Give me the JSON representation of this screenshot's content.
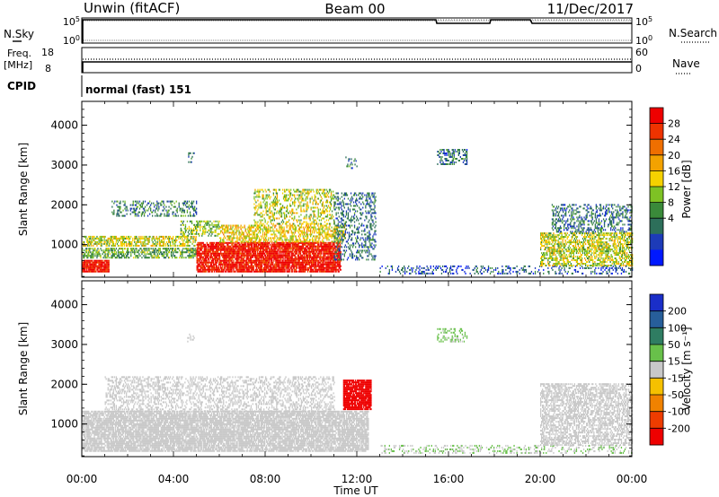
{
  "header": {
    "station": "Unwin (fitACF)",
    "beam": "Beam 00",
    "date": "11/Dec/2017"
  },
  "top_panels": {
    "nsky_label": "N.Sky",
    "nsearch_label": "N.Search",
    "freq_label_1": "Freq.",
    "freq_label_2": "[MHz]",
    "nave_label": "Nave",
    "cpid_label": "CPID",
    "cpid_value": "normal (fast) 151",
    "noise_left_ticks": [
      "10^5",
      "10^0"
    ],
    "noise_right_ticks": [
      "10^5",
      "10^0"
    ],
    "freq_ticks": [
      "18",
      "8"
    ],
    "nave_ticks": [
      "60",
      "0"
    ]
  },
  "colorbars": {
    "power": {
      "label": "Power [dB]",
      "ticks": [
        "28",
        "24",
        "20",
        "16",
        "12",
        "8",
        "4"
      ],
      "colors": [
        "#0018ff",
        "#1d3bb8",
        "#2d6f5a",
        "#3a8a3a",
        "#7ec224",
        "#f5d100",
        "#f3a200",
        "#ef6f00",
        "#ee3300",
        "#ee0000"
      ]
    },
    "velocity": {
      "label": "Velocity [m s⁻¹]",
      "ticks": [
        "200",
        "100",
        "50",
        "15",
        "-15",
        "-50",
        "-100",
        "-200"
      ],
      "colors": [
        "#1a2ec8",
        "#275e9a",
        "#2f7d62",
        "#68c04a",
        "#c8c8c8",
        "#f5c000",
        "#f08200",
        "#ee3c00",
        "#ee0000"
      ]
    }
  },
  "chart_data": [
    {
      "type": "heatmap",
      "title": "Power",
      "xlabel": "Time UT",
      "ylabel": "Slant Range [km]",
      "x_ticks": [
        "00:00",
        "04:00",
        "08:00",
        "12:00",
        "16:00",
        "20:00",
        "00:00"
      ],
      "y_ticks": [
        1000,
        2000,
        3000,
        4000
      ],
      "ylim": [
        180,
        4600
      ],
      "xlim_hours": [
        0,
        24
      ],
      "colorbar_range": [
        0,
        32
      ],
      "regions": [
        {
          "t": [
            0.0,
            1.2
          ],
          "r": [
            300,
            600
          ],
          "v": 30,
          "d": 0.9
        },
        {
          "t": [
            0.0,
            5.0
          ],
          "r": [
            650,
            900
          ],
          "v": 12,
          "d": 0.55
        },
        {
          "t": [
            0.0,
            5.0
          ],
          "r": [
            950,
            1200
          ],
          "v": 16,
          "d": 0.6
        },
        {
          "t": [
            1.3,
            5.0
          ],
          "r": [
            1700,
            2100
          ],
          "v": 9,
          "d": 0.3
        },
        {
          "t": [
            4.3,
            6.0
          ],
          "r": [
            1200,
            1600
          ],
          "v": 14,
          "d": 0.4
        },
        {
          "t": [
            5.0,
            11.3
          ],
          "r": [
            300,
            1050
          ],
          "v": 30,
          "d": 0.85
        },
        {
          "t": [
            6.0,
            11.5
          ],
          "r": [
            1050,
            1500
          ],
          "v": 18,
          "d": 0.5
        },
        {
          "t": [
            7.5,
            11.0
          ],
          "r": [
            1500,
            2400
          ],
          "v": 16,
          "d": 0.35
        },
        {
          "t": [
            11.0,
            12.8
          ],
          "r": [
            600,
            2300
          ],
          "v": 8,
          "d": 0.3
        },
        {
          "t": [
            4.6,
            4.9
          ],
          "r": [
            3050,
            3300
          ],
          "v": 8,
          "d": 0.2
        },
        {
          "t": [
            11.5,
            12.0
          ],
          "r": [
            2900,
            3200
          ],
          "v": 8,
          "d": 0.2
        },
        {
          "t": [
            15.5,
            16.8
          ],
          "r": [
            3000,
            3400
          ],
          "v": 8,
          "d": 0.35
        },
        {
          "t": [
            13.0,
            24.0
          ],
          "r": [
            250,
            450
          ],
          "v": 6,
          "d": 0.25
        },
        {
          "t": [
            20.0,
            24.0
          ],
          "r": [
            450,
            1300
          ],
          "v": 16,
          "d": 0.55
        },
        {
          "t": [
            20.5,
            24.0
          ],
          "r": [
            1300,
            2000
          ],
          "v": 8,
          "d": 0.35
        }
      ]
    },
    {
      "type": "heatmap",
      "title": "Velocity",
      "xlabel": "Time UT",
      "ylabel": "Slant Range [km]",
      "x_ticks": [
        "00:00",
        "04:00",
        "08:00",
        "12:00",
        "16:00",
        "20:00",
        "00:00"
      ],
      "y_ticks": [
        1000,
        2000,
        3000,
        4000
      ],
      "ylim": [
        180,
        4600
      ],
      "xlim_hours": [
        0,
        24
      ],
      "colorbar_range": [
        -200,
        200
      ],
      "regions": [
        {
          "t": [
            0.0,
            12.5
          ],
          "r": [
            300,
            1300
          ],
          "v": 0,
          "d": 0.8
        },
        {
          "t": [
            1.0,
            11.0
          ],
          "r": [
            1300,
            2200
          ],
          "v": 0,
          "d": 0.35
        },
        {
          "t": [
            11.4,
            12.6
          ],
          "r": [
            1350,
            2100
          ],
          "v": -250,
          "d": 0.9
        },
        {
          "t": [
            4.6,
            4.9
          ],
          "r": [
            3050,
            3300
          ],
          "v": 0,
          "d": 0.2
        },
        {
          "t": [
            15.5,
            16.8
          ],
          "r": [
            3050,
            3400
          ],
          "v": 30,
          "d": 0.3
        },
        {
          "t": [
            13.0,
            24.0
          ],
          "r": [
            250,
            450
          ],
          "v": 20,
          "d": 0.25
        },
        {
          "t": [
            20.0,
            24.0
          ],
          "r": [
            450,
            2000
          ],
          "v": 0,
          "d": 0.55
        }
      ]
    }
  ]
}
